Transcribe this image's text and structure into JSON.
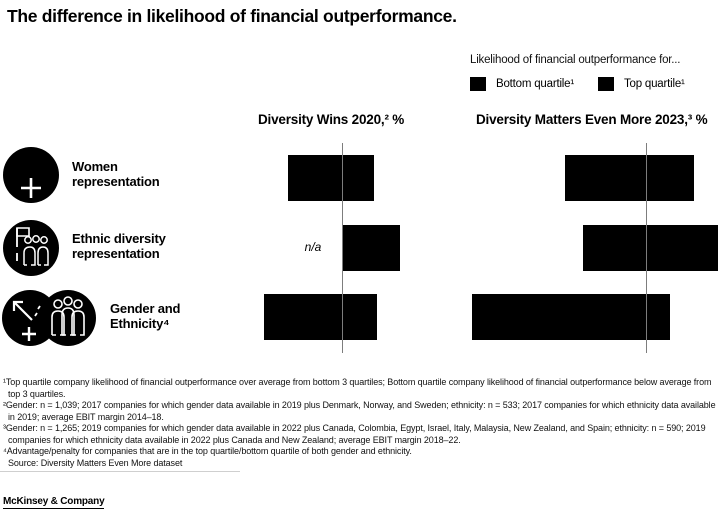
{
  "title": "The difference in likelihood of financial outperformance.",
  "legend": {
    "caption": "Likelihood of financial outperformance for...",
    "items": [
      {
        "label": "Bottom quartile¹",
        "color": "#000000"
      },
      {
        "label": "Top quartile¹",
        "color": "#000000"
      }
    ]
  },
  "rows": [
    {
      "label_lines": [
        "Women",
        "representation"
      ],
      "icon": "woman-plus-icon"
    },
    {
      "label_lines": [
        "Ethnic diversity",
        "representation"
      ],
      "icon": "people-with-flag-icon"
    },
    {
      "label_lines": [
        "Gender and",
        "Ethnicity⁴"
      ],
      "icon": "arrow-plus-and-people-icon"
    }
  ],
  "chart_data": {
    "type": "bar",
    "orientation": "horizontal-diverging",
    "categories": [
      "Women representation",
      "Ethnic diversity representation",
      "Gender and Ethnicity"
    ],
    "unit": "%",
    "bar_color": "#000000",
    "axis_note": "vertical zero baseline per panel, no tick labels, values estimated from bar lengths",
    "panels": [
      {
        "title": "Diversity Wins 2020,² %",
        "na_text": "n/a",
        "series": [
          {
            "name": "Bottom quartile",
            "values": [
              -19,
              null,
              -27
            ]
          },
          {
            "name": "Top quartile",
            "values": [
              11,
              20,
              12
            ]
          }
        ]
      },
      {
        "title": "Diversity Matters Even More 2023,³ %",
        "series": [
          {
            "name": "Bottom quartile",
            "values": [
              -31,
              -24,
              -66
            ]
          },
          {
            "name": "Top quartile",
            "values": [
              18,
              27,
              9
            ]
          }
        ]
      }
    ]
  },
  "footnotes": [
    "¹Top quartile company likelihood of financial outperformance over average from bottom 3 quartiles; Bottom quartile company likelihood of financial outperformance below average from top 3 quartiles.",
    "²Gender: n = 1,039; 2017 companies for which gender data available in 2019 plus Denmark, Norway, and Sweden; ethnicity: n = 533; 2017 companies for which ethnicity data available in 2019; average EBIT margin 2014–18.",
    "³Gender: n = 1,265; 2019 companies for which gender data available in 2022 plus Canada, Colombia, Egypt, Israel, Italy, Malaysia, New Zealand, and Spain; ethnicity: n = 590; 2019 companies for which ethnicity data available in 2022 plus Canada and New Zealand; average EBIT margin 2018–22.",
    "⁴Advantage/penalty for companies that are in the top quartile/bottom quartile of both gender and ethnicity."
  ],
  "source": "Source: Diversity Matters Even More dataset",
  "footer": {
    "brand": "McKinsey & Company"
  }
}
